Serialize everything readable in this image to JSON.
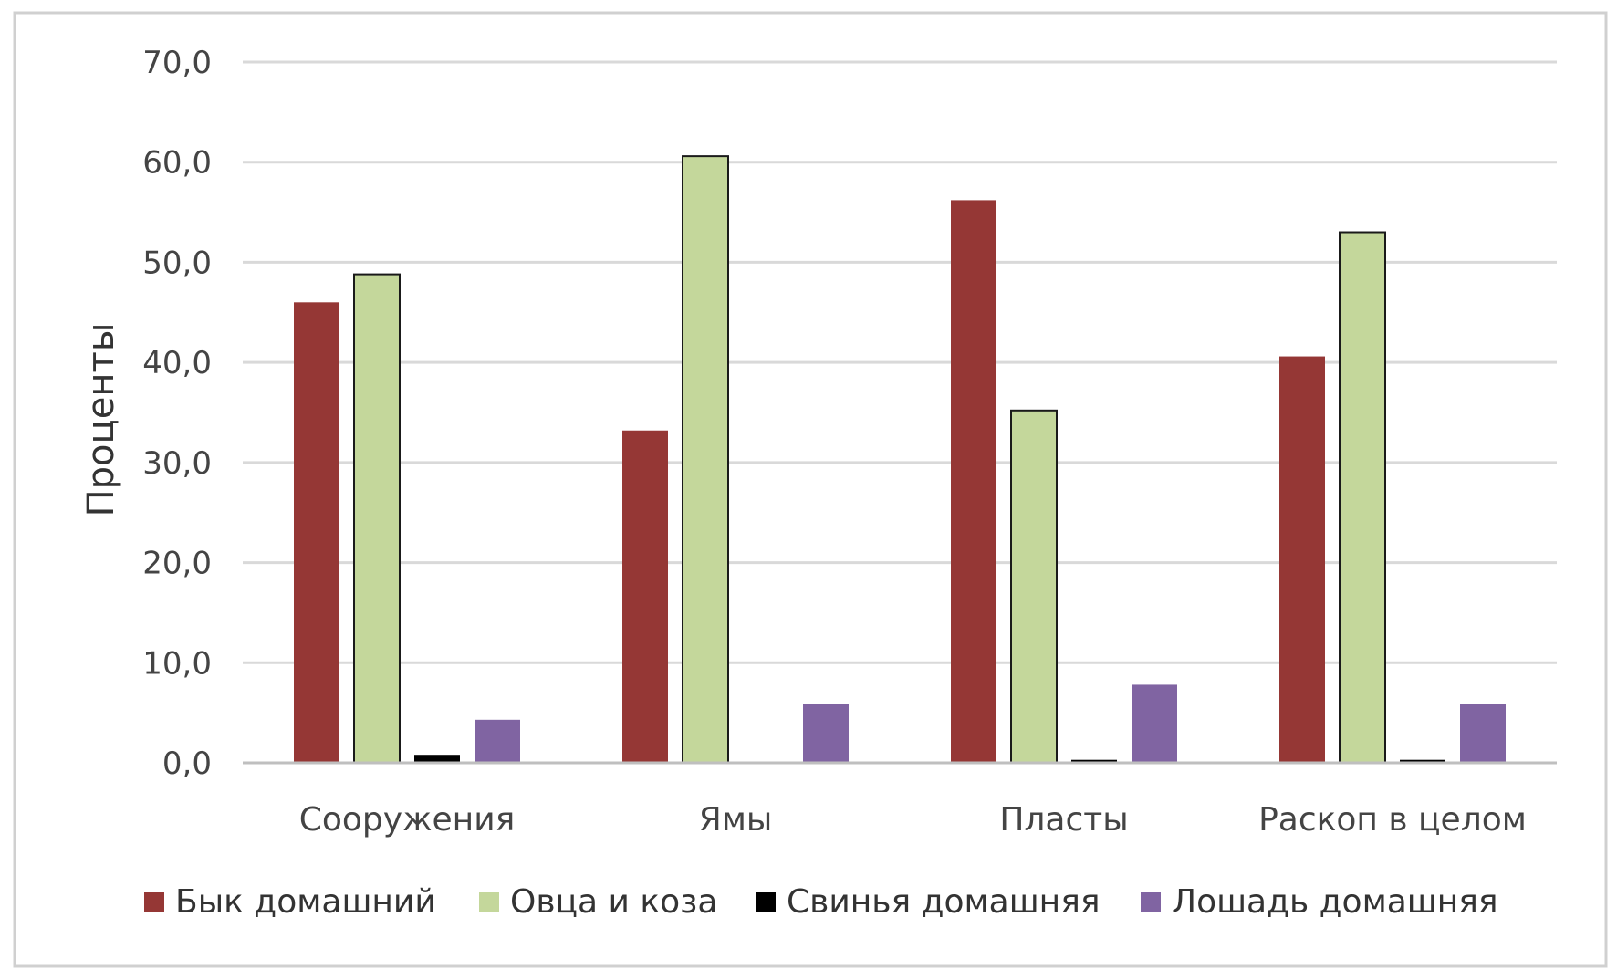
{
  "chart_data": {
    "type": "bar",
    "title": "",
    "xlabel": "",
    "ylabel": "Проценты",
    "ylim": [
      0,
      70
    ],
    "yticks": [
      "0,0",
      "10,0",
      "20,0",
      "30,0",
      "40,0",
      "50,0",
      "60,0",
      "70,0"
    ],
    "grid": true,
    "legend_position": "bottom",
    "categories": [
      "Сооружения",
      "Ямы",
      "Пласты",
      "Раскоп в целом"
    ],
    "series": [
      {
        "name": "Бык домашний",
        "color": "#953735",
        "values": [
          46.0,
          33.2,
          56.2,
          40.6
        ]
      },
      {
        "name": "Овца и коза",
        "color": "#C4D79B",
        "values": [
          48.8,
          60.6,
          35.2,
          53.0
        ]
      },
      {
        "name": "Свинья домашняя",
        "color": "#000000",
        "values": [
          0.8,
          0.0,
          0.3,
          0.3
        ]
      },
      {
        "name": "Лошадь домашняя",
        "color": "#8064A2",
        "values": [
          4.3,
          5.9,
          7.8,
          5.9
        ]
      }
    ]
  }
}
